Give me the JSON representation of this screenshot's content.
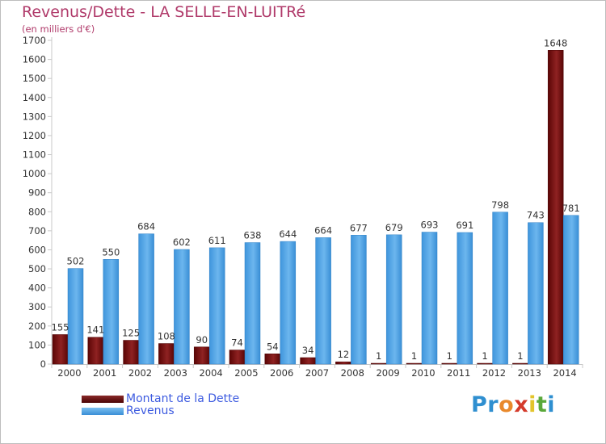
{
  "header": {
    "title": "Revenus/Dette - LA SELLE-EN-LUITRé",
    "unit": "(en milliers d'€)"
  },
  "legend": {
    "items": [
      {
        "label": "Montant de la Dette",
        "color": "#6b0b0b"
      },
      {
        "label": "Revenus",
        "color": "#4a9fe0"
      }
    ]
  },
  "logo": {
    "letters": [
      "P",
      "r",
      "o",
      "x",
      "i",
      "t",
      "i"
    ],
    "colors": [
      "#2f8fd0",
      "#2f8fd0",
      "#e9892b",
      "#d43a2b",
      "#e3c42b",
      "#5aa83a",
      "#2f8fd0"
    ]
  },
  "chart_data": {
    "type": "bar",
    "title": "Revenus/Dette - LA SELLE-EN-LUITRé",
    "ylabel": "(en milliers d'€)",
    "xlabel": "",
    "ylim": [
      0,
      1700
    ],
    "ytick_step": 100,
    "grid": false,
    "legend_position": "bottom-left",
    "categories": [
      "2000",
      "2001",
      "2002",
      "2003",
      "2004",
      "2005",
      "2006",
      "2007",
      "2008",
      "2009",
      "2010",
      "2011",
      "2012",
      "2013",
      "2014"
    ],
    "series": [
      {
        "name": "Montant de la Dette",
        "color": "#6b0b0b",
        "values": [
          155,
          141,
          125,
          108,
          90,
          74,
          54,
          34,
          12,
          1,
          1,
          1,
          1,
          1,
          1648
        ],
        "labels": [
          "155",
          "141",
          "125",
          "108",
          "90",
          "74",
          "54",
          "34",
          "12",
          "1",
          "1",
          "1",
          "1",
          "1",
          "1648"
        ]
      },
      {
        "name": "Revenus",
        "color": "#4a9fe0",
        "values": [
          502,
          550,
          684,
          602,
          611,
          638,
          644,
          664,
          677,
          679,
          693,
          691,
          798,
          743,
          781
        ],
        "labels": [
          "502",
          "550",
          "684",
          "602",
          "611",
          "638",
          "644",
          "664",
          "677",
          "679",
          "693",
          "691",
          "798",
          "743",
          "781"
        ]
      }
    ]
  }
}
